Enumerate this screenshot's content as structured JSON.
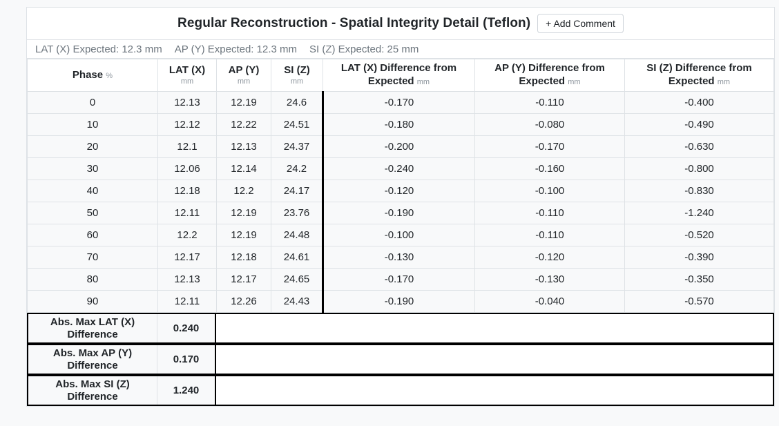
{
  "header": {
    "title": "Regular Reconstruction - Spatial Integrity Detail (Teflon)",
    "add_comment_label": "+ Add Comment"
  },
  "expected": {
    "lat": "LAT (X) Expected: 12.3 mm",
    "ap": "AP (Y) Expected: 12.3 mm",
    "si": "SI (Z) Expected: 25 mm"
  },
  "table": {
    "columns": [
      {
        "label": "Phase",
        "unit": "%"
      },
      {
        "label": "LAT (X)",
        "unit": "mm"
      },
      {
        "label": "AP (Y)",
        "unit": "mm"
      },
      {
        "label": "SI (Z)",
        "unit": "mm"
      },
      {
        "label": "LAT (X) Difference from Expected",
        "unit": "mm"
      },
      {
        "label": "AP (Y) Difference from Expected",
        "unit": "mm"
      },
      {
        "label": "SI (Z) Difference from Expected",
        "unit": "mm"
      }
    ],
    "rows": [
      [
        "0",
        "12.13",
        "12.19",
        "24.6",
        "-0.170",
        "-0.110",
        "-0.400"
      ],
      [
        "10",
        "12.12",
        "12.22",
        "24.51",
        "-0.180",
        "-0.080",
        "-0.490"
      ],
      [
        "20",
        "12.1",
        "12.13",
        "24.37",
        "-0.200",
        "-0.170",
        "-0.630"
      ],
      [
        "30",
        "12.06",
        "12.14",
        "24.2",
        "-0.240",
        "-0.160",
        "-0.800"
      ],
      [
        "40",
        "12.18",
        "12.2",
        "24.17",
        "-0.120",
        "-0.100",
        "-0.830"
      ],
      [
        "50",
        "12.11",
        "12.19",
        "23.76",
        "-0.190",
        "-0.110",
        "-1.240"
      ],
      [
        "60",
        "12.2",
        "12.19",
        "24.48",
        "-0.100",
        "-0.110",
        "-0.520"
      ],
      [
        "70",
        "12.17",
        "12.18",
        "24.61",
        "-0.130",
        "-0.120",
        "-0.390"
      ],
      [
        "80",
        "12.13",
        "12.17",
        "24.65",
        "-0.170",
        "-0.130",
        "-0.350"
      ],
      [
        "90",
        "12.11",
        "12.26",
        "24.43",
        "-0.190",
        "-0.040",
        "-0.570"
      ]
    ]
  },
  "summary": [
    {
      "label": "Abs. Max LAT (X) Difference",
      "value": "0.240"
    },
    {
      "label": "Abs. Max AP (Y) Difference",
      "value": "0.170"
    },
    {
      "label": "Abs. Max SI (Z) Difference",
      "value": "1.240"
    }
  ],
  "colors": {
    "page_background": "#f8f9fa",
    "card_background": "#ffffff",
    "row_background": "#f8f9fa",
    "border_light": "#dee2e6",
    "border_heavy": "#000000",
    "text_primary": "#212529",
    "text_muted": "#6c757d",
    "text_unit": "#8d959d"
  }
}
